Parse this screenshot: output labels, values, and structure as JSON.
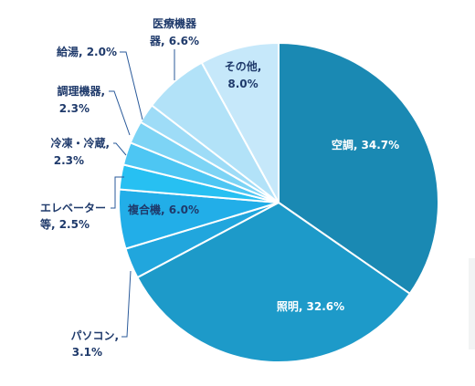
{
  "chart_data": {
    "type": "pie",
    "slices": [
      {
        "name": "空調",
        "value": 34.7,
        "color": "#1a89b3"
      },
      {
        "name": "照明",
        "value": 32.6,
        "color": "#1d9ac9"
      },
      {
        "name": "パソコン",
        "value": 3.1,
        "color": "#21a6dd"
      },
      {
        "name": "複合機",
        "value": 6.0,
        "color": "#22aee8"
      },
      {
        "name": "エレベーター等",
        "value": 2.5,
        "color": "#27c0f2"
      },
      {
        "name": "冷凍・冷蔵",
        "value": 2.3,
        "color": "#4dc6f3"
      },
      {
        "name": "調理機器",
        "value": 2.3,
        "color": "#7dd4f5"
      },
      {
        "name": "給湯",
        "value": 2.0,
        "color": "#9edcf7"
      },
      {
        "name": "医療機器",
        "value": 6.6,
        "color": "#b2e2f8"
      },
      {
        "name": "その他",
        "value": 8.0,
        "color": "#c6e8fa"
      }
    ],
    "labels": {
      "aircon": [
        "空調, 34.7%"
      ],
      "lighting": [
        "照明, 32.6%"
      ],
      "pc": [
        "パソコン,",
        "3.1%"
      ],
      "mfp": [
        "複合機, 6.0%"
      ],
      "elevator": [
        "エレベーター",
        "等, 2.5%"
      ],
      "fridge": [
        "冷凍・冷蔵,",
        "2.3%"
      ],
      "cooking": [
        "調理機器,",
        "2.3%"
      ],
      "hotwater": [
        "給湯, 2.0%"
      ],
      "medical": [
        "医療機器",
        "器, 6.6%"
      ],
      "other": [
        "その他,",
        "8.0%"
      ]
    }
  }
}
